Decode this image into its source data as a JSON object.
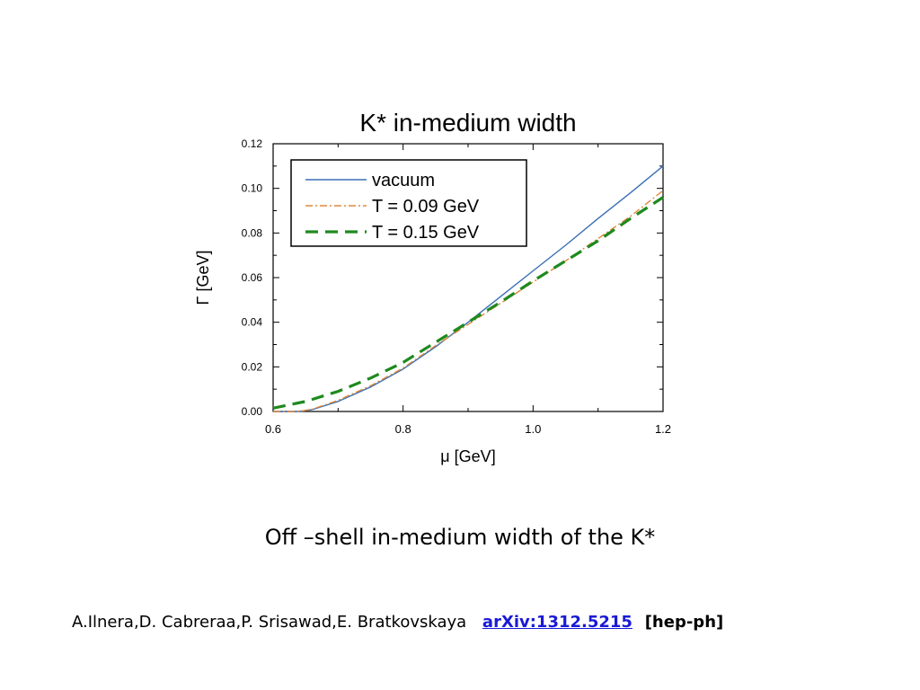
{
  "chart_data": {
    "type": "line",
    "title": "K* in-medium width",
    "xlabel": "μ [GeV]",
    "ylabel": "Γ [GeV]",
    "xlim": [
      0.6,
      1.2
    ],
    "ylim": [
      0.0,
      0.12
    ],
    "xticks": [
      "0.6",
      "0.8",
      "1.0",
      "1.2"
    ],
    "yticks": [
      "0.00",
      "0.02",
      "0.04",
      "0.06",
      "0.08",
      "0.10",
      "0.12"
    ],
    "grid": false,
    "legend_position": "top-left",
    "series": [
      {
        "name": "vacuum",
        "color": "#3a6fb5",
        "style": "solid",
        "x": [
          0.6,
          0.64,
          0.66,
          0.7,
          0.75,
          0.8,
          0.85,
          0.9,
          0.95,
          1.0,
          1.05,
          1.1,
          1.15,
          1.2
        ],
        "y": [
          0.0,
          0.0,
          0.0008,
          0.0045,
          0.011,
          0.019,
          0.029,
          0.04,
          0.0515,
          0.063,
          0.0745,
          0.0865,
          0.098,
          0.11
        ]
      },
      {
        "name": "T = 0.09 GeV",
        "color": "#e0883a",
        "style": "dashdot",
        "x": [
          0.6,
          0.64,
          0.66,
          0.7,
          0.75,
          0.8,
          0.85,
          0.9,
          0.95,
          1.0,
          1.05,
          1.1,
          1.15,
          1.2
        ],
        "y": [
          0.0,
          0.0,
          0.001,
          0.005,
          0.0115,
          0.0195,
          0.0295,
          0.039,
          0.0485,
          0.058,
          0.0675,
          0.0775,
          0.0875,
          0.099
        ]
      },
      {
        "name": "T = 0.15 GeV",
        "color": "#1e8a1e",
        "style": "dashed",
        "x": [
          0.6,
          0.65,
          0.7,
          0.75,
          0.8,
          0.85,
          0.9,
          0.95,
          1.0,
          1.05,
          1.1,
          1.15,
          1.2
        ],
        "y": [
          0.0015,
          0.0045,
          0.009,
          0.015,
          0.022,
          0.031,
          0.04,
          0.049,
          0.0585,
          0.0675,
          0.0765,
          0.0865,
          0.096
        ]
      }
    ]
  },
  "caption": "Off –shell in-medium width of the K*",
  "citation": {
    "authors": "A.Ilnera,D. Cabreraa,P. Srisawad,E. Bratkovskaya",
    "link_text": "arXiv:1312.5215",
    "category": "[hep-ph]"
  }
}
